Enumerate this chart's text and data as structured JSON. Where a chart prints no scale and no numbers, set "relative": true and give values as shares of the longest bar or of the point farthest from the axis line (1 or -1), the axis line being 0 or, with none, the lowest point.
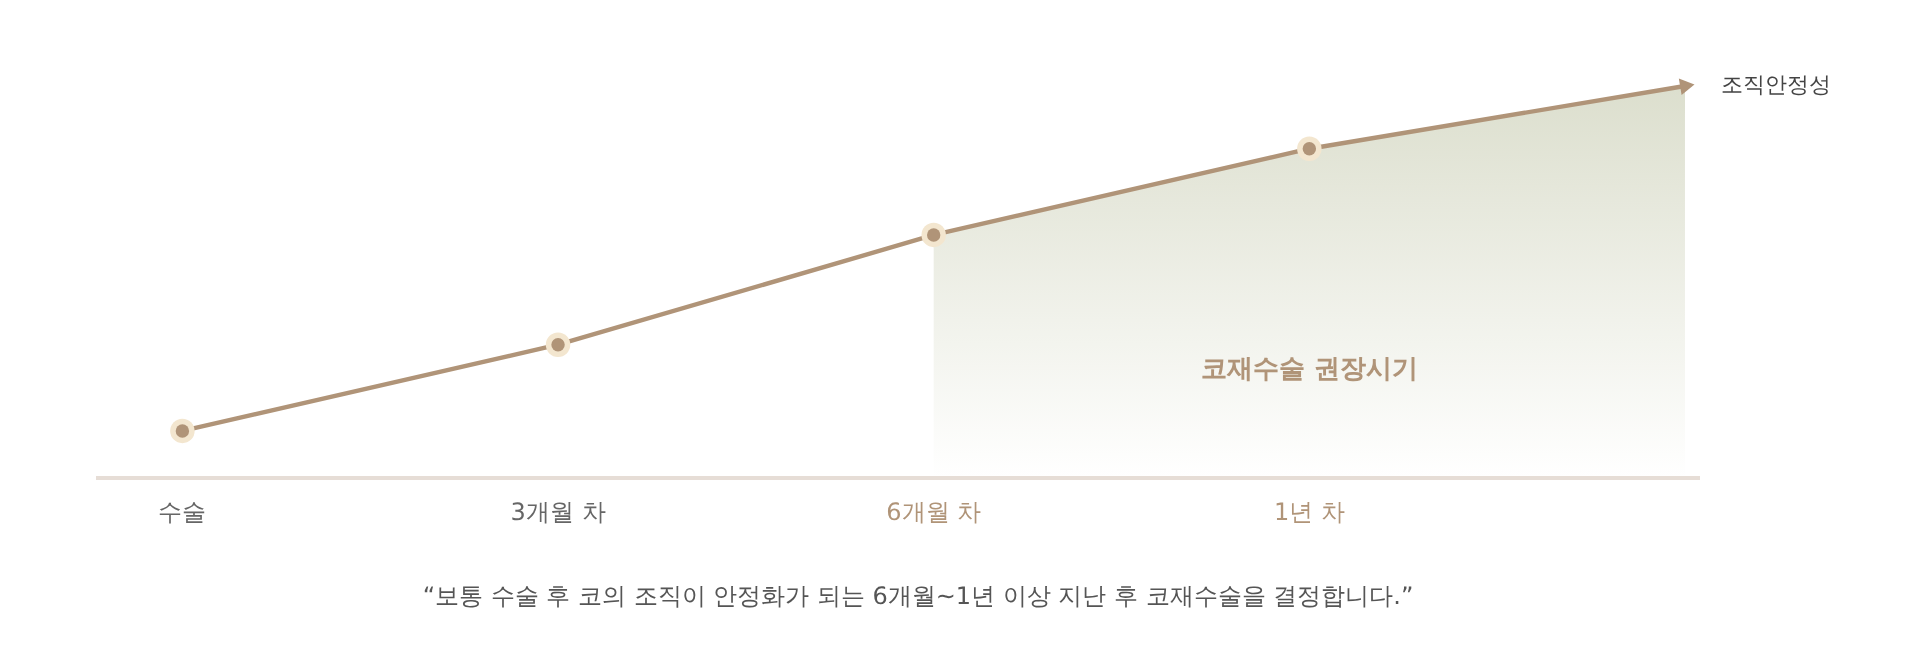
{
  "chart_data": {
    "type": "line",
    "relative": true,
    "categories": [
      "수술",
      "3개월 차",
      "6개월 차",
      "1년 차",
      null
    ],
    "ylabel": "조직안정성",
    "series": [
      {
        "type": "area",
        "name": "코재수술 권장시기",
        "color": "#d8dbc8",
        "values": [
          null,
          null,
          0.62,
          0.84,
          1.0
        ]
      },
      {
        "color": "#b09478",
        "values": [
          0.12,
          0.34,
          0.62,
          0.84,
          1.0
        ]
      }
    ],
    "marker": "circle",
    "line_style": "solid",
    "annotations": [
      "“보통 수술 후 코의 조직이 안정화가 되는 6개월~1년 이상 지난 후 코재수술을 결정합니다.”"
    ]
  }
}
